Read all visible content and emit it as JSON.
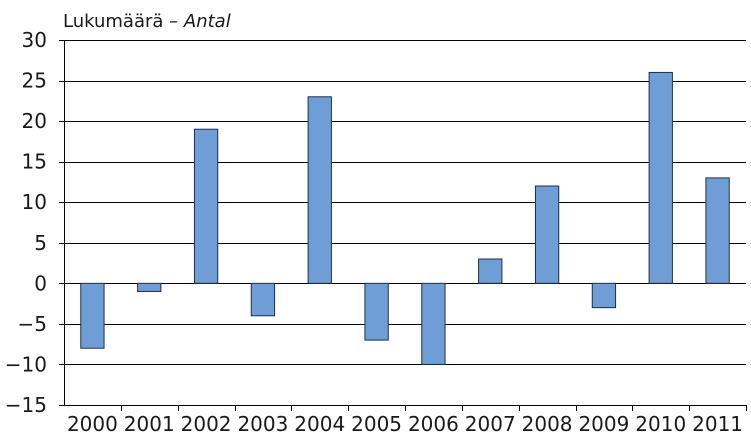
{
  "chart_data": {
    "type": "bar",
    "title": "",
    "ylabel": "Lukumäärä",
    "ylabel_separator": " – ",
    "ylabel_italic": "Antal",
    "xlabel": "",
    "categories": [
      "2000",
      "2001",
      "2002",
      "2003",
      "2004",
      "2005",
      "2006",
      "2007",
      "2008",
      "2009",
      "2010",
      "2011"
    ],
    "values": [
      -8,
      -1,
      19,
      -4,
      23,
      -7,
      -10,
      3,
      12,
      -3,
      26,
      13
    ],
    "ylim": [
      -15,
      30
    ],
    "yticks": [
      -15,
      -10,
      -5,
      0,
      5,
      10,
      15,
      20,
      25,
      30
    ],
    "ytick_labels": [
      "−15",
      "−10",
      "−5",
      "0",
      "5",
      "10",
      "15",
      "20",
      "25",
      "30"
    ],
    "grid": true,
    "legend": "none",
    "colors": {
      "bar_fill": "#6f9ed6",
      "bar_stroke": "#1f2f4a",
      "grid": "#000000",
      "axis": "#000000",
      "text": "#1a1a1a"
    }
  }
}
